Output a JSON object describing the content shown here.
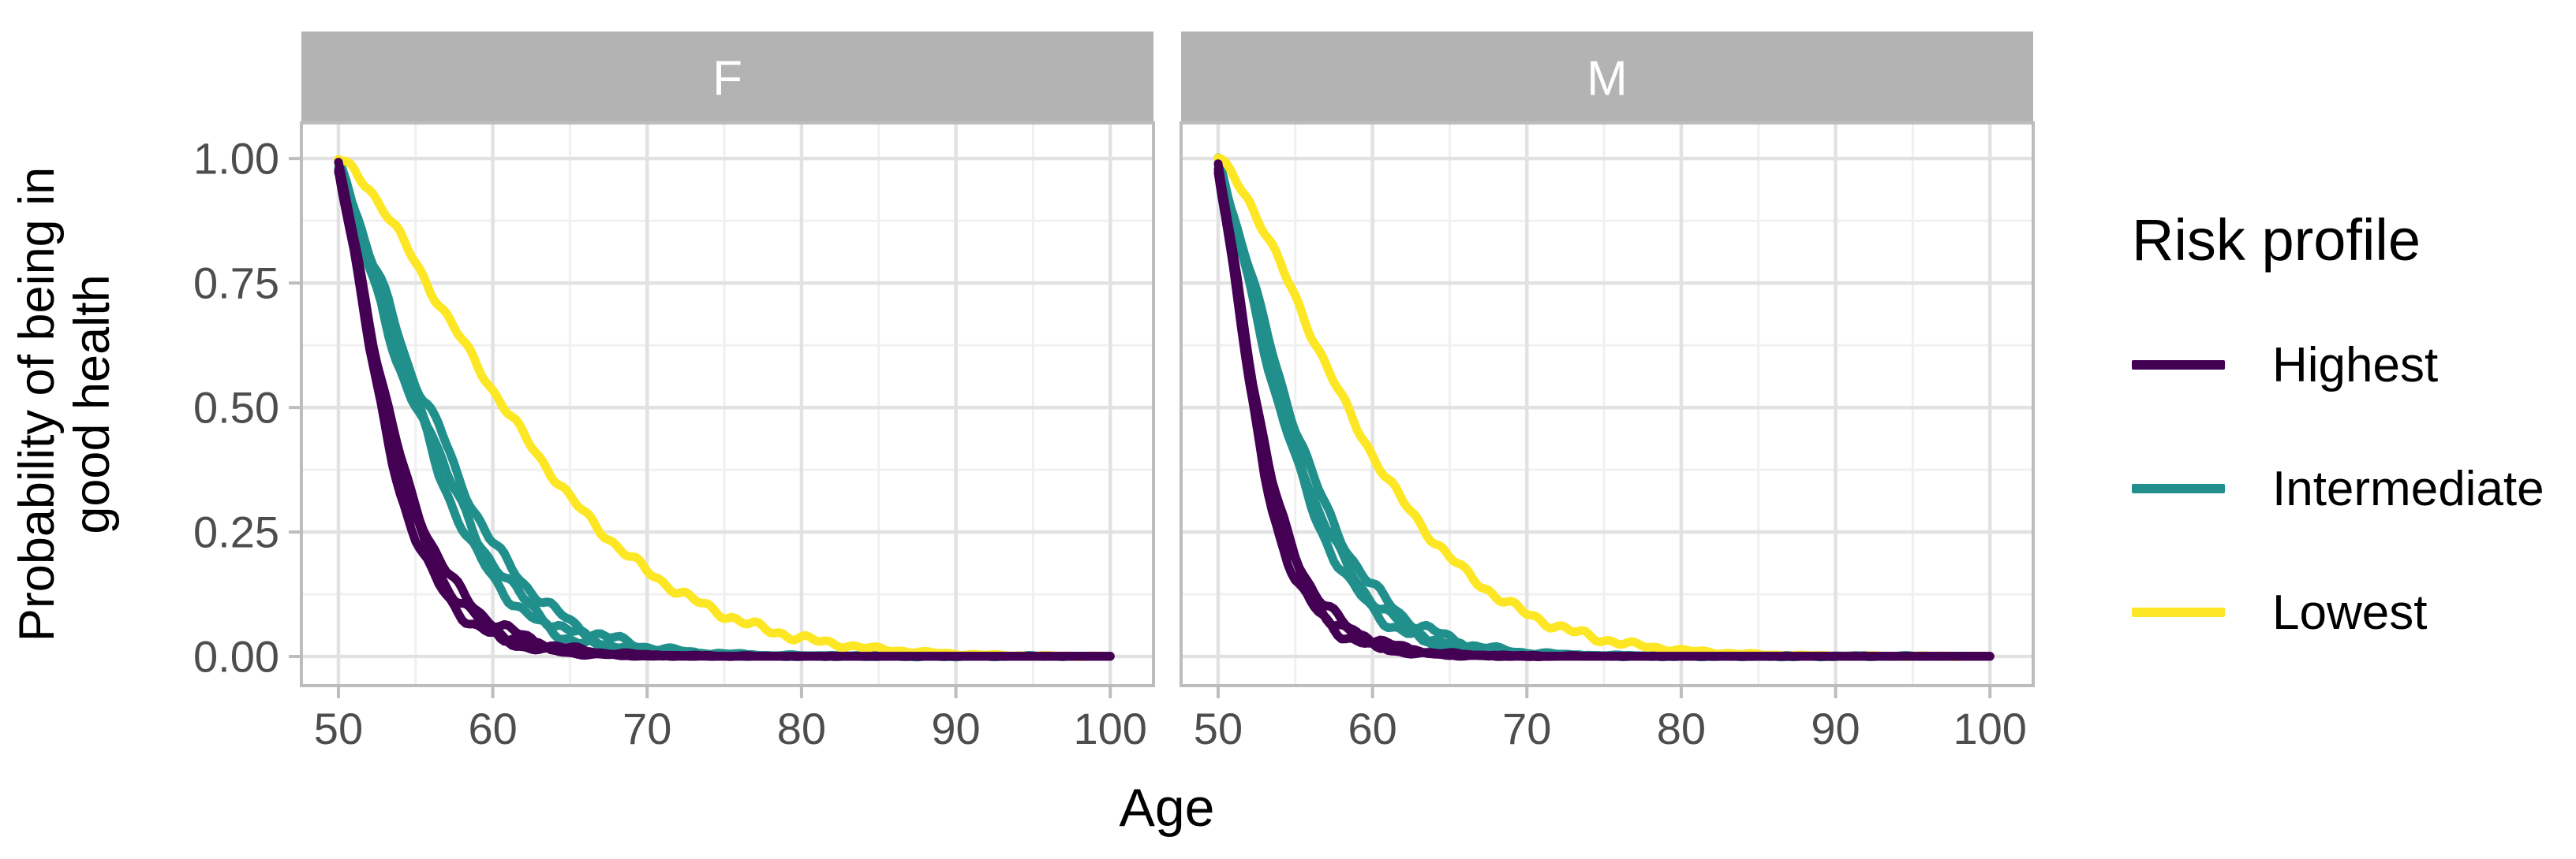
{
  "legend": {
    "title": "Risk profile",
    "items": [
      {
        "label": "Highest",
        "color": "#440154"
      },
      {
        "label": "Intermediate",
        "color": "#21908C"
      },
      {
        "label": "Lowest",
        "color": "#FDE725"
      }
    ]
  },
  "style": {
    "strip_bg": "#B3B3B3",
    "strip_text": "#FFFFFF",
    "panel_bg": "#FFFFFF",
    "panel_border": "#BDBDBD",
    "grid_major": "#E2E2E2",
    "grid_minor": "#F0F0F0",
    "tick_color": "#BDBDBD",
    "axis_text_color": "#4D4D4D",
    "title_color": "#000000"
  },
  "chart_data": {
    "type": "line",
    "title": "",
    "xlabel": "Age",
    "ylabel": "Probability of being in good health",
    "ylabel_lines": [
      "Probability of being in",
      "good health"
    ],
    "legend_title": "Risk profile",
    "legend_position": "right",
    "grid": true,
    "xlim": [
      47.6,
      102.8
    ],
    "ylim": [
      -0.0585,
      1.0715
    ],
    "x_tick_values": [
      50,
      60,
      70,
      80,
      90,
      100
    ],
    "x_tick_labels": [
      "50",
      "60",
      "70",
      "80",
      "90",
      "100"
    ],
    "x_minor_values": [
      55,
      65,
      75,
      85,
      95
    ],
    "y_tick_values": [
      1.0,
      0.75,
      0.5,
      0.25,
      0.0
    ],
    "y_tick_labels": [
      "1.00",
      "0.75",
      "0.50",
      "0.25",
      "0.00"
    ],
    "y_minor_values": [
      0.125,
      0.375,
      0.625,
      0.875
    ],
    "facets": [
      {
        "label": "F",
        "series": [
          {
            "name": "Highest",
            "color": "#440154",
            "n_lines": 3,
            "line_scales": [
              1.0,
              1.08,
              1.17
            ],
            "points": [
              [
                50,
                0.98
              ],
              [
                50.5,
                0.905
              ],
              [
                51,
                0.82
              ],
              [
                51.5,
                0.72
              ],
              [
                52,
                0.62
              ],
              [
                52.5,
                0.535
              ],
              [
                53,
                0.46
              ],
              [
                53.5,
                0.39
              ],
              [
                54,
                0.33
              ],
              [
                54.5,
                0.283
              ],
              [
                55,
                0.24
              ],
              [
                55.5,
                0.203
              ],
              [
                56,
                0.17
              ],
              [
                56.5,
                0.143
              ],
              [
                57,
                0.12
              ],
              [
                57.5,
                0.101
              ],
              [
                58,
                0.085
              ],
              [
                59,
                0.06
              ],
              [
                60,
                0.042
              ],
              [
                61,
                0.03
              ],
              [
                62,
                0.021
              ],
              [
                63,
                0.015
              ],
              [
                64,
                0.01
              ],
              [
                65,
                0.007
              ],
              [
                66,
                0.005
              ],
              [
                68,
                0.0025
              ],
              [
                70,
                0.0012
              ],
              [
                73,
                0.0006
              ],
              [
                100,
                0.0004
              ]
            ]
          },
          {
            "name": "Intermediate",
            "color": "#21908C",
            "n_lines": 3,
            "line_scales": [
              0.93,
              1.0,
              1.09
            ],
            "points": [
              [
                50,
                0.99
              ],
              [
                50.5,
                0.945
              ],
              [
                51,
                0.9
              ],
              [
                51.5,
                0.845
              ],
              [
                52,
                0.79
              ],
              [
                52.5,
                0.75
              ],
              [
                53,
                0.71
              ],
              [
                53.5,
                0.655
              ],
              [
                54,
                0.6
              ],
              [
                54.5,
                0.558
              ],
              [
                55,
                0.52
              ],
              [
                55.5,
                0.49
              ],
              [
                56,
                0.46
              ],
              [
                56.5,
                0.415
              ],
              [
                57,
                0.37
              ],
              [
                57.5,
                0.335
              ],
              [
                58,
                0.3
              ],
              [
                58.5,
                0.267
              ],
              [
                59,
                0.235
              ],
              [
                59.5,
                0.212
              ],
              [
                60,
                0.19
              ],
              [
                60.5,
                0.17
              ],
              [
                61,
                0.15
              ],
              [
                61.5,
                0.132
              ],
              [
                62,
                0.115
              ],
              [
                63,
                0.087
              ],
              [
                64,
                0.065
              ],
              [
                65,
                0.05
              ],
              [
                66,
                0.038
              ],
              [
                67,
                0.029
              ],
              [
                68,
                0.022
              ],
              [
                69,
                0.016
              ],
              [
                70,
                0.012
              ],
              [
                71,
                0.009
              ],
              [
                72,
                0.0068
              ],
              [
                73,
                0.005
              ],
              [
                75,
                0.003
              ],
              [
                77,
                0.0018
              ],
              [
                80,
                0.001
              ],
              [
                100,
                0.0004
              ]
            ]
          },
          {
            "name": "Lowest",
            "color": "#FDE725",
            "n_lines": 1,
            "line_scales": [
              1.0
            ],
            "points": [
              [
                50,
                1
              ],
              [
                51,
                0.975
              ],
              [
                52,
                0.94
              ],
              [
                53,
                0.895
              ],
              [
                54,
                0.845
              ],
              [
                55,
                0.79
              ],
              [
                56,
                0.735
              ],
              [
                57,
                0.685
              ],
              [
                58,
                0.635
              ],
              [
                59,
                0.585
              ],
              [
                60,
                0.535
              ],
              [
                61,
                0.49
              ],
              [
                62,
                0.445
              ],
              [
                63,
                0.4
              ],
              [
                64,
                0.36
              ],
              [
                65,
                0.32
              ],
              [
                66,
                0.285
              ],
              [
                67,
                0.253
              ],
              [
                68,
                0.223
              ],
              [
                69,
                0.197
              ],
              [
                70,
                0.172
              ],
              [
                71,
                0.15
              ],
              [
                72,
                0.131
              ],
              [
                73,
                0.114
              ],
              [
                74,
                0.098
              ],
              [
                75,
                0.084
              ],
              [
                76,
                0.072
              ],
              [
                77,
                0.061
              ],
              [
                78,
                0.052
              ],
              [
                79,
                0.044
              ],
              [
                80,
                0.037
              ],
              [
                81,
                0.031
              ],
              [
                82,
                0.026
              ],
              [
                83,
                0.022
              ],
              [
                84,
                0.018
              ],
              [
                85,
                0.015
              ],
              [
                86,
                0.012
              ],
              [
                87,
                0.01
              ],
              [
                88,
                0.008
              ],
              [
                89,
                0.0065
              ],
              [
                90,
                0.005
              ],
              [
                91,
                0.004
              ],
              [
                92,
                0.003
              ],
              [
                93,
                0.0023
              ],
              [
                94,
                0.0018
              ],
              [
                95,
                0.0014
              ],
              [
                97,
                0.0009
              ],
              [
                100,
                0.0005
              ]
            ]
          }
        ]
      },
      {
        "label": "M",
        "series": [
          {
            "name": "Highest",
            "color": "#440154",
            "n_lines": 3,
            "line_scales": [
              1.0,
              1.07,
              1.14
            ],
            "points": [
              [
                50,
                0.98
              ],
              [
                50.5,
                0.885
              ],
              [
                51,
                0.78
              ],
              [
                51.5,
                0.665
              ],
              [
                52,
                0.55
              ],
              [
                52.5,
                0.45
              ],
              [
                53,
                0.36
              ],
              [
                53.5,
                0.295
              ],
              [
                54,
                0.24
              ],
              [
                54.5,
                0.196
              ],
              [
                55,
                0.16
              ],
              [
                55.5,
                0.13
              ],
              [
                56,
                0.105
              ],
              [
                56.5,
                0.086
              ],
              [
                57,
                0.07
              ],
              [
                57.5,
                0.057
              ],
              [
                58,
                0.047
              ],
              [
                59,
                0.032
              ],
              [
                60,
                0.021
              ],
              [
                61,
                0.014
              ],
              [
                62,
                0.009
              ],
              [
                63,
                0.006
              ],
              [
                64,
                0.004
              ],
              [
                66,
                0.002
              ],
              [
                68,
                0.001
              ],
              [
                71,
                0.0005
              ],
              [
                100,
                0.0004
              ]
            ]
          },
          {
            "name": "Intermediate",
            "color": "#21908C",
            "n_lines": 3,
            "line_scales": [
              0.94,
              1.0,
              1.08
            ],
            "points": [
              [
                50,
                0.99
              ],
              [
                50.5,
                0.935
              ],
              [
                51,
                0.88
              ],
              [
                51.5,
                0.825
              ],
              [
                52,
                0.765
              ],
              [
                52.5,
                0.7
              ],
              [
                53,
                0.64
              ],
              [
                53.5,
                0.58
              ],
              [
                54,
                0.525
              ],
              [
                54.5,
                0.475
              ],
              [
                55,
                0.43
              ],
              [
                55.5,
                0.38
              ],
              [
                56,
                0.335
              ],
              [
                56.5,
                0.295
              ],
              [
                57,
                0.26
              ],
              [
                57.5,
                0.23
              ],
              [
                58,
                0.2
              ],
              [
                58.5,
                0.175
              ],
              [
                59,
                0.15
              ],
              [
                59.5,
                0.132
              ],
              [
                60,
                0.115
              ],
              [
                60.5,
                0.099
              ],
              [
                61,
                0.085
              ],
              [
                61.5,
                0.073
              ],
              [
                62,
                0.063
              ],
              [
                63,
                0.047
              ],
              [
                64,
                0.034
              ],
              [
                65,
                0.025
              ],
              [
                66,
                0.018
              ],
              [
                67,
                0.013
              ],
              [
                68,
                0.0095
              ],
              [
                69,
                0.007
              ],
              [
                70,
                0.005
              ],
              [
                71,
                0.0035
              ],
              [
                72,
                0.0025
              ],
              [
                74,
                0.0015
              ],
              [
                76,
                0.001
              ],
              [
                100,
                0.0004
              ]
            ]
          },
          {
            "name": "Lowest",
            "color": "#FDE725",
            "n_lines": 1,
            "line_scales": [
              1.0
            ],
            "points": [
              [
                50,
                1
              ],
              [
                51,
                0.965
              ],
              [
                52,
                0.915
              ],
              [
                53,
                0.855
              ],
              [
                54,
                0.79
              ],
              [
                55,
                0.72
              ],
              [
                56,
                0.65
              ],
              [
                57,
                0.585
              ],
              [
                58,
                0.52
              ],
              [
                59,
                0.46
              ],
              [
                60,
                0.405
              ],
              [
                61,
                0.355
              ],
              [
                62,
                0.31
              ],
              [
                63,
                0.27
              ],
              [
                64,
                0.232
              ],
              [
                65,
                0.2
              ],
              [
                66,
                0.17
              ],
              [
                67,
                0.145
              ],
              [
                68,
                0.122
              ],
              [
                69,
                0.103
              ],
              [
                70,
                0.086
              ],
              [
                71,
                0.072
              ],
              [
                72,
                0.06
              ],
              [
                73,
                0.05
              ],
              [
                74,
                0.041
              ],
              [
                75,
                0.034
              ],
              [
                76,
                0.028
              ],
              [
                77,
                0.023
              ],
              [
                78,
                0.019
              ],
              [
                79,
                0.0155
              ],
              [
                80,
                0.0125
              ],
              [
                81,
                0.01
              ],
              [
                82,
                0.008
              ],
              [
                83,
                0.0065
              ],
              [
                84,
                0.005
              ],
              [
                85,
                0.004
              ],
              [
                86,
                0.003
              ],
              [
                87,
                0.0025
              ],
              [
                88,
                0.002
              ],
              [
                90,
                0.0013
              ],
              [
                92,
                0.0009
              ],
              [
                100,
                0.0005
              ]
            ]
          }
        ]
      }
    ]
  }
}
